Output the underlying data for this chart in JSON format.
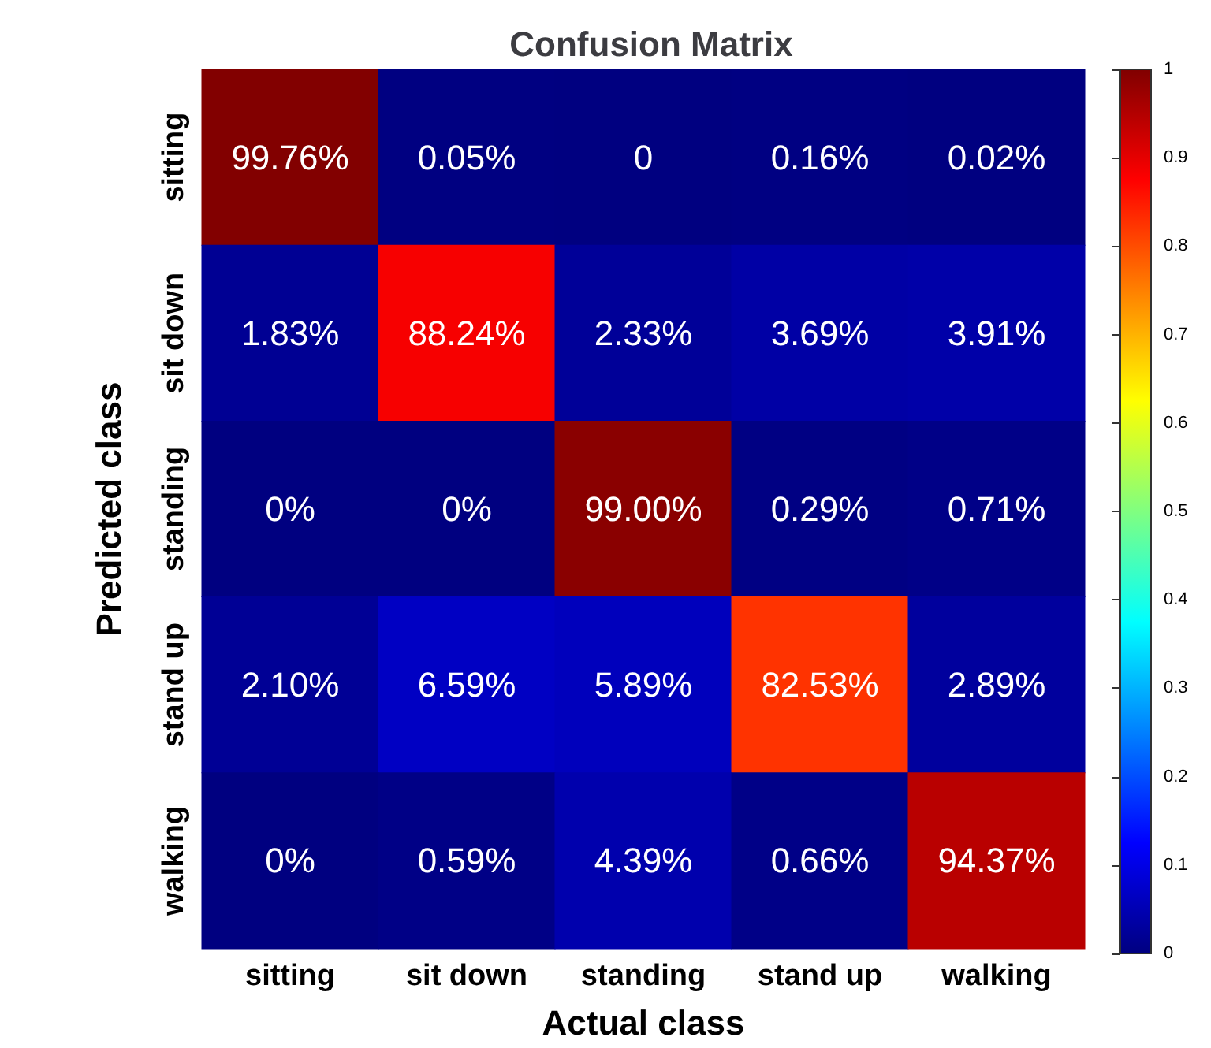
{
  "chart_data": {
    "type": "heatmap",
    "title": "Confusion Matrix",
    "xlabel": "Actual class",
    "ylabel": "Predicted class",
    "categories": [
      "sitting",
      "sit down",
      "standing",
      "stand up",
      "walking"
    ],
    "y_categories": [
      "sitting",
      "sit down",
      "standing",
      "stand up",
      "walking"
    ],
    "cells": [
      [
        0.9976,
        0.0005,
        0,
        0.0016,
        0.0002
      ],
      [
        0.0183,
        0.8824,
        0.0233,
        0.0369,
        0.0391
      ],
      [
        0,
        0,
        0.99,
        0.0029,
        0.0071
      ],
      [
        0.021,
        0.0659,
        0.0589,
        0.8253,
        0.0289
      ],
      [
        0,
        0.0059,
        0.0439,
        0.0066,
        0.9437
      ]
    ],
    "cell_labels": [
      [
        "99.76%",
        "0.05%",
        "0",
        "0.16%",
        "0.02%"
      ],
      [
        "1.83%",
        "88.24%",
        "2.33%",
        "3.69%",
        "3.91%"
      ],
      [
        "0%",
        "0%",
        "99.00%",
        "0.29%",
        "0.71%"
      ],
      [
        "2.10%",
        "6.59%",
        "5.89%",
        "82.53%",
        "2.89%"
      ],
      [
        "0%",
        "0.59%",
        "4.39%",
        "0.66%",
        "94.37%"
      ]
    ],
    "clim": [
      0,
      1
    ],
    "cticks": [
      0,
      0.1,
      0.2,
      0.3,
      0.4,
      0.5,
      0.6,
      0.7,
      0.8,
      0.9,
      1
    ]
  }
}
